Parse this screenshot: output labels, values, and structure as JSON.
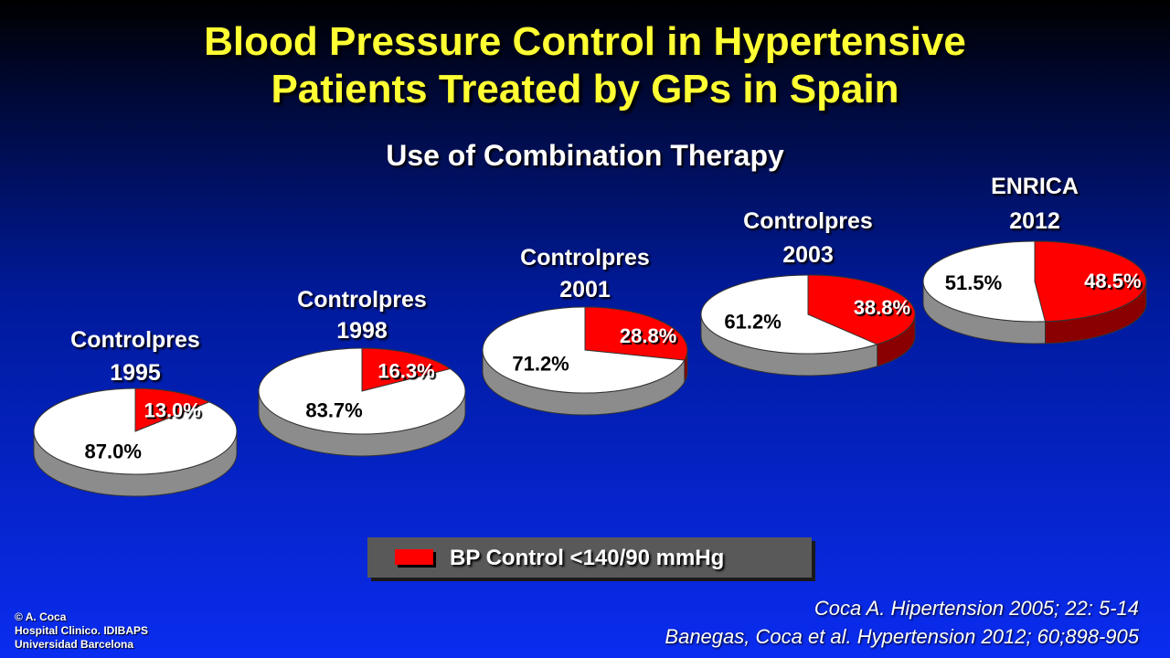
{
  "title_line1": "Blood Pressure Control in Hypertensive",
  "title_line2": "Patients Treated by GPs in Spain",
  "subtitle": "Use of Combination Therapy",
  "chart_data": {
    "type": "pie",
    "pies": [
      {
        "label_line1": "Controlpres",
        "label_line2": "1995",
        "controlled": 13.0,
        "not_controlled": 87.0
      },
      {
        "label_line1": "Controlpres",
        "label_line2": "1998",
        "controlled": 16.3,
        "not_controlled": 83.7
      },
      {
        "label_line1": "Controlpres",
        "label_line2": "2001",
        "controlled": 28.8,
        "not_controlled": 71.2
      },
      {
        "label_line1": "Controlpres",
        "label_line2": "2003",
        "controlled": 38.8,
        "not_controlled": 61.2
      },
      {
        "label_line1": "ENRICA",
        "label_line2": "2012",
        "controlled": 48.5,
        "not_controlled": 51.5
      }
    ],
    "legend": [
      {
        "name": "BP Control <140/90 mmHg",
        "color": "#ff0000"
      }
    ],
    "colors": {
      "controlled": "#ff0000",
      "not_controlled": "#ffffff"
    }
  },
  "legend_label": "BP Control <140/90 mmHg",
  "copyright": {
    "line1": "© A. Coca",
    "line2": "Hospital Clinico. IDIBAPS",
    "line3": "Universidad Barcelona"
  },
  "references": {
    "ref1": "Coca A. Hipertension 2005; 22: 5-14",
    "ref2": "Banegas, Coca et al. Hypertension 2012; 60;898-905"
  }
}
